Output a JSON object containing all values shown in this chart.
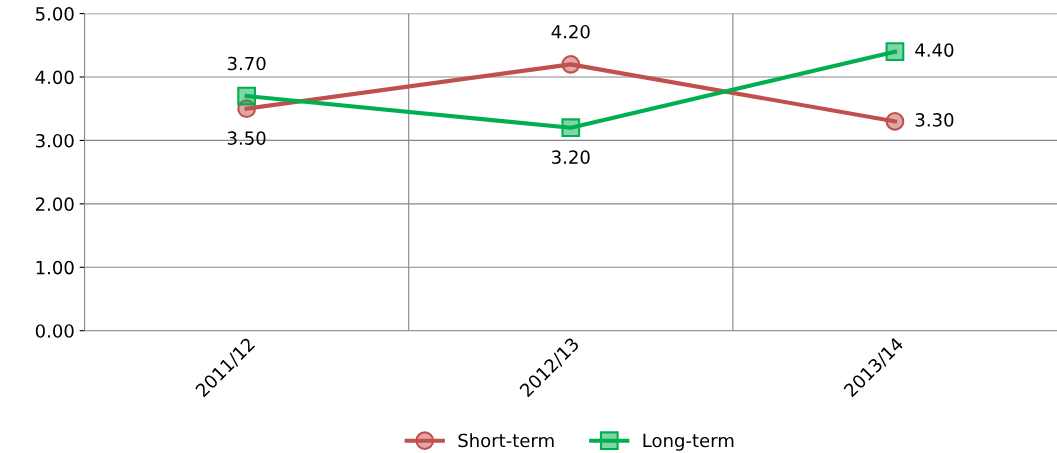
{
  "chart_data": {
    "type": "line",
    "categories": [
      "2011/12",
      "2012/13",
      "2013/14"
    ],
    "series": [
      {
        "name": "Short-term",
        "color": "#c0504d",
        "marker": "circle",
        "values": [
          3.5,
          4.2,
          3.3
        ],
        "value_labels": [
          "3.50",
          "4.20",
          "3.30"
        ]
      },
      {
        "name": "Long-term",
        "color": "#00b050",
        "marker": "square",
        "values": [
          3.7,
          3.2,
          4.4
        ],
        "value_labels": [
          "3.70",
          "3.20",
          "4.40"
        ]
      }
    ],
    "ylim": [
      0,
      5
    ],
    "yticks": [
      {
        "value": 0,
        "label": "0.00"
      },
      {
        "value": 1,
        "label": "1.00"
      },
      {
        "value": 2,
        "label": "2.00"
      },
      {
        "value": 3,
        "label": "3.00"
      },
      {
        "value": 4,
        "label": "4.00"
      },
      {
        "value": 5,
        "label": "5.00"
      }
    ],
    "grid": true,
    "legend": "bottom"
  }
}
